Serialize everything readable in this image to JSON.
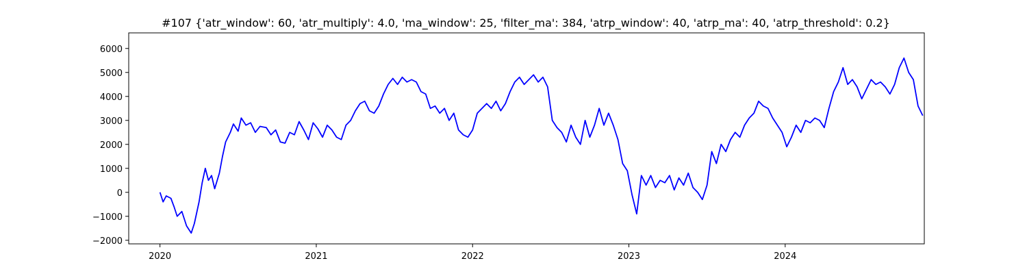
{
  "chart_data": {
    "type": "line",
    "title": "#107 {'atr_window': 60, 'atr_multiply': 4.0, 'ma_window': 25, 'filter_ma': 384, 'atrp_window': 40, 'atrp_ma': 40, 'atrp_threshold': 0.2}",
    "xlabel": "",
    "ylabel": "",
    "grid": false,
    "legend": "none",
    "xlim": [
      2019.8,
      2024.89
    ],
    "ylim": [
      -2150,
      6650
    ],
    "x_ticks": [
      2020,
      2021,
      2022,
      2023,
      2024
    ],
    "x_tick_labels": [
      "2020",
      "2021",
      "2022",
      "2023",
      "2024"
    ],
    "y_ticks": [
      -2000,
      -1000,
      0,
      1000,
      2000,
      3000,
      4000,
      5000,
      6000
    ],
    "y_tick_labels": [
      "−2000",
      "−1000",
      "0",
      "1000",
      "2000",
      "3000",
      "4000",
      "5000",
      "6000"
    ],
    "series": [
      {
        "color": "#0000ff",
        "points": [
          [
            2020.0,
            0
          ],
          [
            2020.02,
            -400
          ],
          [
            2020.04,
            -150
          ],
          [
            2020.07,
            -250
          ],
          [
            2020.09,
            -600
          ],
          [
            2020.11,
            -1000
          ],
          [
            2020.14,
            -800
          ],
          [
            2020.17,
            -1400
          ],
          [
            2020.2,
            -1700
          ],
          [
            2020.22,
            -1300
          ],
          [
            2020.25,
            -400
          ],
          [
            2020.27,
            400
          ],
          [
            2020.29,
            1000
          ],
          [
            2020.31,
            500
          ],
          [
            2020.33,
            700
          ],
          [
            2020.35,
            150
          ],
          [
            2020.38,
            800
          ],
          [
            2020.4,
            1500
          ],
          [
            2020.42,
            2100
          ],
          [
            2020.45,
            2500
          ],
          [
            2020.47,
            2850
          ],
          [
            2020.5,
            2550
          ],
          [
            2020.52,
            3100
          ],
          [
            2020.55,
            2800
          ],
          [
            2020.58,
            2900
          ],
          [
            2020.61,
            2500
          ],
          [
            2020.64,
            2750
          ],
          [
            2020.68,
            2700
          ],
          [
            2020.71,
            2400
          ],
          [
            2020.74,
            2600
          ],
          [
            2020.77,
            2100
          ],
          [
            2020.8,
            2050
          ],
          [
            2020.83,
            2500
          ],
          [
            2020.86,
            2400
          ],
          [
            2020.89,
            2950
          ],
          [
            2020.92,
            2600
          ],
          [
            2020.95,
            2200
          ],
          [
            2020.98,
            2900
          ],
          [
            2021.01,
            2650
          ],
          [
            2021.04,
            2300
          ],
          [
            2021.07,
            2800
          ],
          [
            2021.1,
            2600
          ],
          [
            2021.13,
            2300
          ],
          [
            2021.16,
            2200
          ],
          [
            2021.19,
            2800
          ],
          [
            2021.22,
            3000
          ],
          [
            2021.25,
            3400
          ],
          [
            2021.28,
            3700
          ],
          [
            2021.31,
            3800
          ],
          [
            2021.34,
            3400
          ],
          [
            2021.37,
            3300
          ],
          [
            2021.4,
            3600
          ],
          [
            2021.43,
            4100
          ],
          [
            2021.46,
            4500
          ],
          [
            2021.49,
            4750
          ],
          [
            2021.52,
            4500
          ],
          [
            2021.55,
            4800
          ],
          [
            2021.58,
            4600
          ],
          [
            2021.61,
            4700
          ],
          [
            2021.64,
            4600
          ],
          [
            2021.67,
            4200
          ],
          [
            2021.7,
            4100
          ],
          [
            2021.73,
            3500
          ],
          [
            2021.76,
            3600
          ],
          [
            2021.79,
            3300
          ],
          [
            2021.82,
            3500
          ],
          [
            2021.85,
            3000
          ],
          [
            2021.88,
            3300
          ],
          [
            2021.91,
            2600
          ],
          [
            2021.94,
            2400
          ],
          [
            2021.97,
            2300
          ],
          [
            2022.0,
            2600
          ],
          [
            2022.03,
            3300
          ],
          [
            2022.06,
            3500
          ],
          [
            2022.09,
            3700
          ],
          [
            2022.12,
            3500
          ],
          [
            2022.15,
            3800
          ],
          [
            2022.18,
            3400
          ],
          [
            2022.21,
            3700
          ],
          [
            2022.24,
            4200
          ],
          [
            2022.27,
            4600
          ],
          [
            2022.3,
            4800
          ],
          [
            2022.33,
            4500
          ],
          [
            2022.36,
            4700
          ],
          [
            2022.39,
            4900
          ],
          [
            2022.42,
            4600
          ],
          [
            2022.45,
            4800
          ],
          [
            2022.48,
            4400
          ],
          [
            2022.51,
            3000
          ],
          [
            2022.54,
            2700
          ],
          [
            2022.57,
            2500
          ],
          [
            2022.6,
            2100
          ],
          [
            2022.63,
            2800
          ],
          [
            2022.66,
            2300
          ],
          [
            2022.69,
            2000
          ],
          [
            2022.72,
            3000
          ],
          [
            2022.75,
            2300
          ],
          [
            2022.78,
            2800
          ],
          [
            2022.81,
            3500
          ],
          [
            2022.84,
            2800
          ],
          [
            2022.87,
            3300
          ],
          [
            2022.9,
            2800
          ],
          [
            2022.93,
            2200
          ],
          [
            2022.96,
            1200
          ],
          [
            2022.99,
            900
          ],
          [
            2023.02,
            -100
          ],
          [
            2023.05,
            -900
          ],
          [
            2023.08,
            700
          ],
          [
            2023.11,
            300
          ],
          [
            2023.14,
            700
          ],
          [
            2023.17,
            200
          ],
          [
            2023.2,
            500
          ],
          [
            2023.23,
            400
          ],
          [
            2023.26,
            700
          ],
          [
            2023.29,
            100
          ],
          [
            2023.32,
            600
          ],
          [
            2023.35,
            300
          ],
          [
            2023.38,
            800
          ],
          [
            2023.41,
            200
          ],
          [
            2023.44,
            0
          ],
          [
            2023.47,
            -300
          ],
          [
            2023.5,
            300
          ],
          [
            2023.53,
            1700
          ],
          [
            2023.56,
            1200
          ],
          [
            2023.59,
            2000
          ],
          [
            2023.62,
            1700
          ],
          [
            2023.65,
            2200
          ],
          [
            2023.68,
            2500
          ],
          [
            2023.71,
            2300
          ],
          [
            2023.74,
            2800
          ],
          [
            2023.77,
            3100
          ],
          [
            2023.8,
            3300
          ],
          [
            2023.83,
            3800
          ],
          [
            2023.86,
            3600
          ],
          [
            2023.89,
            3500
          ],
          [
            2023.92,
            3100
          ],
          [
            2023.95,
            2800
          ],
          [
            2023.98,
            2500
          ],
          [
            2024.01,
            1900
          ],
          [
            2024.04,
            2300
          ],
          [
            2024.07,
            2800
          ],
          [
            2024.1,
            2500
          ],
          [
            2024.13,
            3000
          ],
          [
            2024.16,
            2900
          ],
          [
            2024.19,
            3100
          ],
          [
            2024.22,
            3000
          ],
          [
            2024.25,
            2700
          ],
          [
            2024.28,
            3500
          ],
          [
            2024.31,
            4200
          ],
          [
            2024.34,
            4600
          ],
          [
            2024.37,
            5200
          ],
          [
            2024.4,
            4500
          ],
          [
            2024.43,
            4700
          ],
          [
            2024.46,
            4400
          ],
          [
            2024.49,
            3900
          ],
          [
            2024.52,
            4300
          ],
          [
            2024.55,
            4700
          ],
          [
            2024.58,
            4500
          ],
          [
            2024.61,
            4600
          ],
          [
            2024.64,
            4400
          ],
          [
            2024.67,
            4100
          ],
          [
            2024.7,
            4500
          ],
          [
            2024.73,
            5200
          ],
          [
            2024.76,
            5600
          ],
          [
            2024.79,
            5000
          ],
          [
            2024.82,
            4700
          ],
          [
            2024.85,
            3600
          ],
          [
            2024.88,
            3200
          ]
        ]
      }
    ]
  }
}
